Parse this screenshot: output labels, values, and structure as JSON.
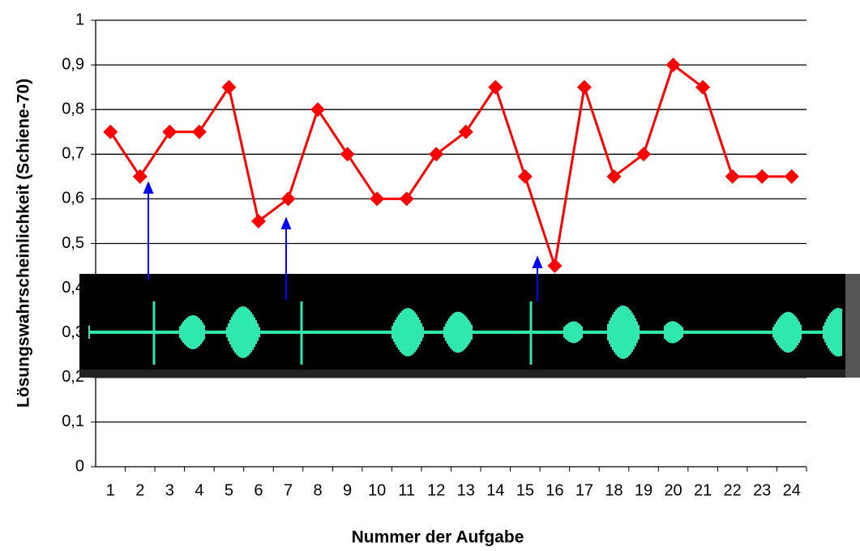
{
  "chart_data": {
    "type": "line",
    "y_label": "Lösungswahrscheinlichkeit (Schiene-70)",
    "x_label": "Nummer der Aufgabe",
    "categories": [
      "1",
      "2",
      "3",
      "4",
      "5",
      "6",
      "7",
      "8",
      "9",
      "10",
      "11",
      "12",
      "13",
      "14",
      "15",
      "16",
      "17",
      "18",
      "19",
      "20",
      "21",
      "22",
      "23",
      "24"
    ],
    "series": [
      {
        "color": "#ff0000",
        "values": [
          0.75,
          0.65,
          0.75,
          0.75,
          0.85,
          0.55,
          0.6,
          0.8,
          0.7,
          0.6,
          0.6,
          0.7,
          0.75,
          0.85,
          0.65,
          0.45,
          0.85,
          0.65,
          0.7,
          0.9,
          0.85,
          0.65,
          0.65,
          0.65
        ]
      }
    ],
    "ylim": [
      0,
      1
    ],
    "yticks": [
      0,
      {
        "value": 0.1,
        "label": "0,1"
      },
      {
        "value": 0.2,
        "label": "0,2"
      },
      {
        "value": 0.3,
        "label": "0,3"
      },
      {
        "value": 0.4,
        "label": "0,4"
      },
      {
        "value": 0.5,
        "label": "0,5"
      },
      {
        "value": 0.6,
        "label": "0,6"
      },
      {
        "value": 0.7,
        "label": "0,7"
      },
      {
        "value": 0.8,
        "label": "0,8"
      },
      {
        "value": 0.9,
        "label": "0,9"
      },
      1
    ],
    "grid": true
  }
}
